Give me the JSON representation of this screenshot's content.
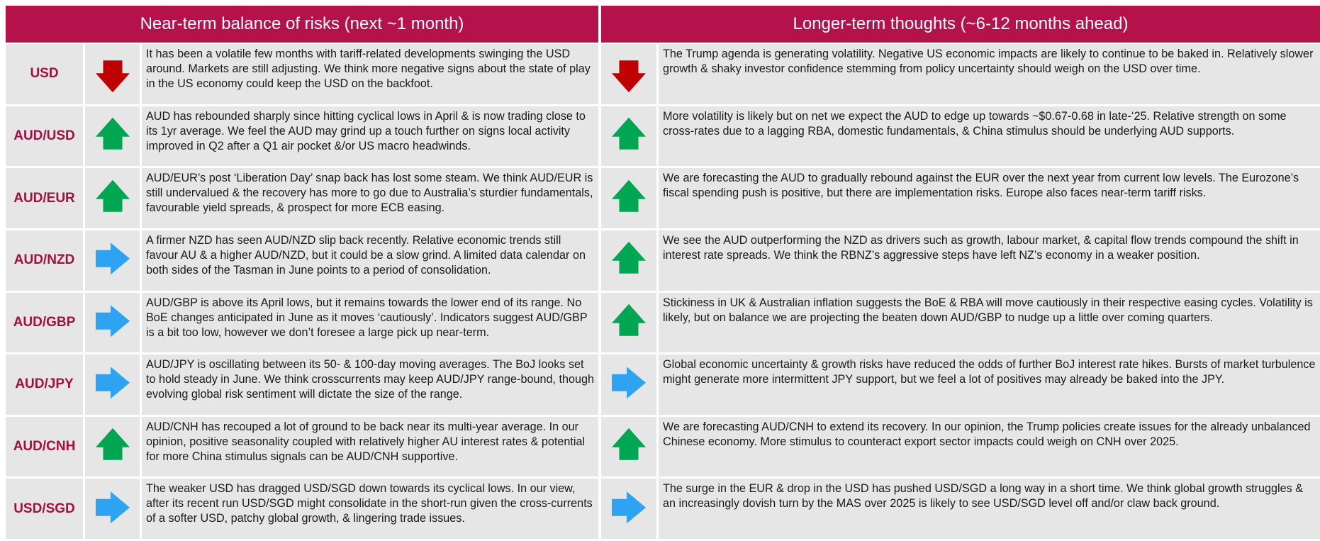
{
  "header": {
    "near": "Near-term balance of risks (next ~1 month)",
    "long": "Longer-term thoughts (~6-12 months ahead)"
  },
  "rows": [
    {
      "currency": "USD",
      "near": "It has been a volatile few months with tariff-related developments swinging the USD around. Markets are still adjusting. We think more negative signs about the state of play in the US economy could keep the USD on the backfoot.",
      "long": "The Trump agenda is generating volatility. Negative US economic impacts are likely to continue to be baked in. Relatively slower growth & shaky investor confidence stemming from policy uncertainty should weigh on the USD over time."
    },
    {
      "currency": "AUD/USD",
      "near": "AUD has rebounded sharply since hitting cyclical lows in April & is now trading close to its 1yr average. We feel the AUD may grind up a touch further on signs local activity improved in Q2 after a Q1 air pocket &/or US macro headwinds.",
      "long": "More volatility is likely but on net we expect the AUD to edge up towards ~$0.67-0.68 in late-‘25. Relative strength on some cross-rates due to a lagging RBA, domestic fundamentals, & China stimulus should be underlying AUD supports."
    },
    {
      "currency": "AUD/EUR",
      "near": "AUD/EUR’s post ‘Liberation Day’ snap back has lost some steam. We think AUD/EUR is still undervalued & the recovery has more to go due to Australia’s sturdier fundamentals, favourable yield spreads, & prospect for more ECB easing.",
      "long": "We are forecasting the AUD to gradually rebound against the EUR over the next year from current low levels. The Eurozone’s fiscal spending push is positive, but there are implementation risks. Europe also faces near-term tariff risks."
    },
    {
      "currency": "AUD/NZD",
      "near": "A firmer NZD has seen AUD/NZD slip back recently. Relative economic trends still favour AU & a higher AUD/NZD, but it could be a slow grind. A limited data calendar on both sides of the Tasman in June points to a period of consolidation.",
      "long": "We see the AUD outperforming the NZD as drivers such as growth, labour market, & capital flow trends compound the shift in interest rate spreads. We think the RBNZ’s aggressive steps have left NZ’s economy in a weaker position."
    },
    {
      "currency": "AUD/GBP",
      "near": "AUD/GBP is above its April lows, but it remains towards the lower end of its range. No BoE changes anticipated in June as it moves ‘cautiously’. Indicators suggest AUD/GBP is a bit too low, however we don’t foresee a large pick up near-term.",
      "long": "Stickiness in UK & Australian inflation suggests the BoE & RBA will move cautiously in their respective easing cycles. Volatility is likely, but on balance we are projecting the beaten down AUD/GBP to nudge up a little over coming quarters."
    },
    {
      "currency": "AUD/JPY",
      "near": "AUD/JPY is oscillating between its 50- & 100-day moving averages. The BoJ looks set to hold steady in June. We think crosscurrents may keep AUD/JPY range-bound, though evolving global risk sentiment will dictate the size of the range.",
      "long": "Global economic uncertainty & growth risks have reduced the odds of further BoJ interest rate hikes. Bursts of market turbulence might generate more intermittent JPY support, but we feel a lot of positives may already be baked into the JPY."
    },
    {
      "currency": "AUD/CNH",
      "near": "AUD/CNH has recouped a lot of ground to be back near its multi-year average. In our opinion, positive seasonality coupled with relatively higher AU interest rates & potential for more China stimulus signals can be AUD/CNH supportive.",
      "long": "We are forecasting AUD/CNH to extend its recovery. In our opinion, the Trump policies create issues for the already unbalanced Chinese economy. More stimulus to counteract export sector impacts could weigh on CNH over 2025."
    },
    {
      "currency": "USD/SGD",
      "near": "The weaker USD has dragged USD/SGD down towards its cyclical lows. In our view, after its recent run USD/SGD might consolidate in the short-run given the cross-currents of a softer USD, patchy global growth, & lingering trade issues.",
      "long": "The surge in the EUR & drop in the USD has pushed USD/SGD a long way in a short time. We think global growth struggles & an increasingly dovish turn by the MAS over 2025 is likely to see USD/SGD level off and/or claw back ground."
    }
  ]
}
